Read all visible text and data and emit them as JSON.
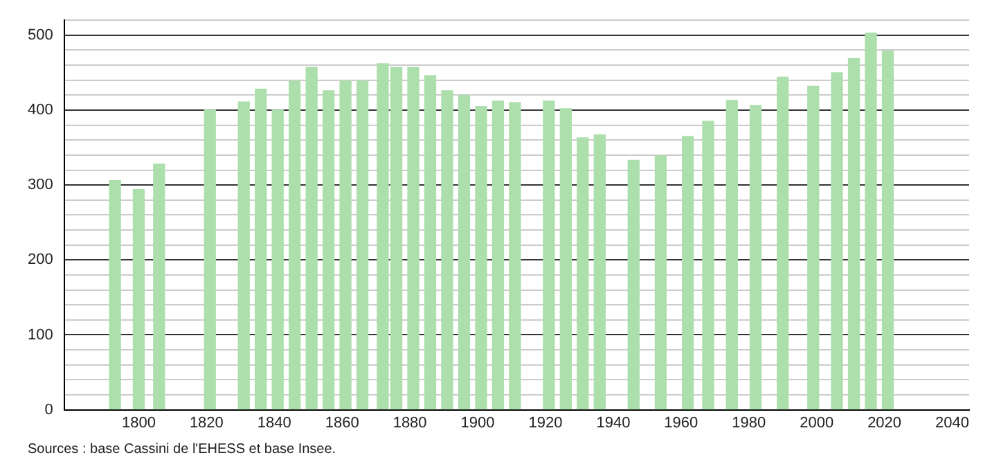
{
  "chart_data": {
    "type": "bar",
    "x": [
      1793,
      1800,
      1806,
      1821,
      1831,
      1836,
      1841,
      1846,
      1851,
      1856,
      1861,
      1866,
      1872,
      1876,
      1881,
      1886,
      1891,
      1896,
      1901,
      1906,
      1911,
      1921,
      1926,
      1931,
      1936,
      1946,
      1954,
      1962,
      1968,
      1975,
      1982,
      1990,
      1999,
      2006,
      2011,
      2016,
      2021
    ],
    "values": [
      306,
      294,
      328,
      400,
      411,
      428,
      400,
      439,
      457,
      426,
      439,
      439,
      462,
      457,
      457,
      446,
      426,
      420,
      405,
      412,
      410,
      412,
      402,
      363,
      367,
      333,
      339,
      365,
      385,
      413,
      406,
      444,
      432,
      450,
      469,
      503,
      479
    ],
    "color": "#addfad",
    "xlim": [
      1778,
      2045
    ],
    "xticks": [
      1800,
      1820,
      1840,
      1860,
      1880,
      1900,
      1920,
      1940,
      1960,
      1980,
      2000,
      2020,
      2040
    ],
    "ylim": [
      0,
      520
    ],
    "yticks": [
      0,
      {
        "value": 20,
        "label": null
      },
      {
        "value": 40,
        "label": null
      },
      {
        "value": 60,
        "label": null
      },
      {
        "value": 80,
        "label": null
      },
      100,
      {
        "value": 120,
        "label": null
      },
      {
        "value": 140,
        "label": null
      },
      {
        "value": 160,
        "label": null
      },
      {
        "value": 180,
        "label": null
      },
      200,
      {
        "value": 220,
        "label": null
      },
      {
        "value": 240,
        "label": null
      },
      {
        "value": 260,
        "label": null
      },
      {
        "value": 280,
        "label": null
      },
      300,
      {
        "value": 320,
        "label": null
      },
      {
        "value": 340,
        "label": null
      },
      {
        "value": 360,
        "label": null
      },
      {
        "value": 380,
        "label": null
      },
      400,
      {
        "value": 420,
        "label": null
      },
      {
        "value": 440,
        "label": null
      },
      {
        "value": 460,
        "label": null
      },
      {
        "value": 480,
        "label": null
      },
      500,
      {
        "value": 520,
        "label": null
      }
    ],
    "grid": "y",
    "legend": false,
    "annotations": [
      "Sources : base Cassini de l'EHESS et base Insee."
    ]
  }
}
